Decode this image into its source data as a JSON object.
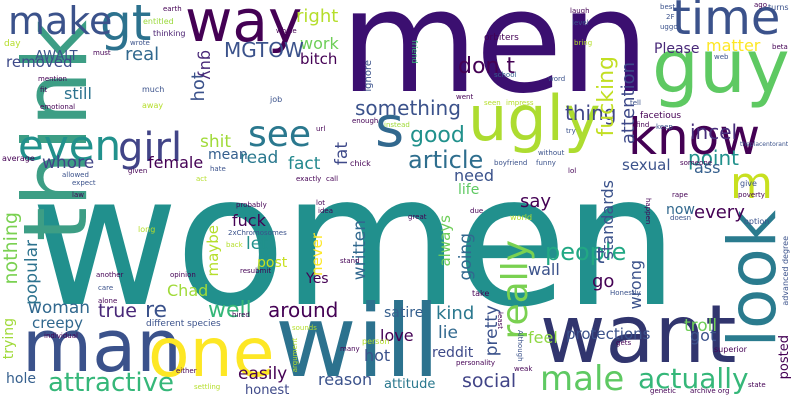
{
  "words": [
    {
      "text": "women",
      "color": "#21908d"
    },
    {
      "text": "men",
      "color": "#3b0f70"
    },
    {
      "text": "think",
      "color": "#3d9e85"
    },
    {
      "text": "guy",
      "color": "#5ec962"
    },
    {
      "text": "will",
      "color": "#2c728e"
    },
    {
      "text": "want",
      "color": "#31356e"
    },
    {
      "text": "man",
      "color": "#3b528b"
    },
    {
      "text": "one",
      "color": "#fde725"
    },
    {
      "text": "look",
      "color": "#2a7b8e"
    },
    {
      "text": "way",
      "color": "#440154"
    },
    {
      "text": "time",
      "color": "#3b528b"
    },
    {
      "text": "ugly",
      "color": "#addc30"
    },
    {
      "text": "know",
      "color": "#440154"
    },
    {
      "text": "gt",
      "color": "#2c728e"
    },
    {
      "text": "make",
      "color": "#3b528b"
    },
    {
      "text": "s",
      "color": "#31688e"
    },
    {
      "text": "m",
      "color": "#c8e020"
    },
    {
      "text": "even",
      "color": "#21918c"
    },
    {
      "text": "girl",
      "color": "#414487"
    },
    {
      "text": "see",
      "color": "#2a788e"
    },
    {
      "text": "male",
      "color": "#5ec962"
    },
    {
      "text": "actually",
      "color": "#35b779"
    },
    {
      "text": "attractive",
      "color": "#35b779"
    },
    {
      "text": "really",
      "color": "#7ad151"
    },
    {
      "text": "people",
      "color": "#22a884"
    },
    {
      "text": "article",
      "color": "#2e6e8e"
    },
    {
      "text": "good",
      "color": "#21918c"
    },
    {
      "text": "something",
      "color": "#3b528b"
    },
    {
      "text": "don t",
      "color": "#440154"
    },
    {
      "text": "thing",
      "color": "#404688"
    },
    {
      "text": "point",
      "color": "#21918c"
    },
    {
      "text": "incel",
      "color": "#472d7b"
    },
    {
      "text": "fucking",
      "color": "#c2df23"
    },
    {
      "text": "attention",
      "color": "#3e4989"
    },
    {
      "text": "matter",
      "color": "#fde725"
    },
    {
      "text": "Please",
      "color": "#482878"
    },
    {
      "text": "work",
      "color": "#6ece58"
    },
    {
      "text": "right",
      "color": "#b5de2b"
    },
    {
      "text": "bitch",
      "color": "#440154"
    },
    {
      "text": "MGTOW",
      "color": "#3b528b"
    },
    {
      "text": "real",
      "color": "#31688e"
    },
    {
      "text": "hot",
      "color": "#3b528b"
    },
    {
      "text": "guy",
      "color": "#482878"
    },
    {
      "text": "still",
      "color": "#2c728e"
    },
    {
      "text": "removed",
      "color": "#3e4a89"
    },
    {
      "text": "AWALT",
      "color": "#3b528b"
    },
    {
      "text": "whore",
      "color": "#414487"
    },
    {
      "text": "female",
      "color": "#440154"
    },
    {
      "text": "shit",
      "color": "#a0da39"
    },
    {
      "text": "mean",
      "color": "#355f8d"
    },
    {
      "text": "read",
      "color": "#2a788e"
    },
    {
      "text": "fact",
      "color": "#23898e"
    },
    {
      "text": "fat",
      "color": "#3e4989"
    },
    {
      "text": "need",
      "color": "#3b528b"
    },
    {
      "text": "life",
      "color": "#5ec962"
    },
    {
      "text": "say",
      "color": "#440154"
    },
    {
      "text": "standards",
      "color": "#3b528b"
    },
    {
      "text": "sexual",
      "color": "#3b528b"
    },
    {
      "text": "ass",
      "color": "#355f8d"
    },
    {
      "text": "every",
      "color": "#440154"
    },
    {
      "text": "now",
      "color": "#31688e"
    },
    {
      "text": "t",
      "color": "#3b528b"
    },
    {
      "text": "nothing",
      "color": "#7ad151"
    },
    {
      "text": "popular",
      "color": "#2c728e"
    },
    {
      "text": "fuck",
      "color": "#440154"
    },
    {
      "text": "let",
      "color": "#21918c"
    },
    {
      "text": "maybe",
      "color": "#b5de2b"
    },
    {
      "text": "post",
      "color": "#c8e020"
    },
    {
      "text": "never",
      "color": "#fde725"
    },
    {
      "text": "written",
      "color": "#31688e"
    },
    {
      "text": "always",
      "color": "#6ece58"
    },
    {
      "text": "going",
      "color": "#31688e"
    },
    {
      "text": "wall",
      "color": "#3b528b"
    },
    {
      "text": "go",
      "color": "#440154"
    },
    {
      "text": "wrong",
      "color": "#3b528b"
    },
    {
      "text": "Chad",
      "color": "#a0da39"
    },
    {
      "text": "re",
      "color": "#3b528b"
    },
    {
      "text": "well",
      "color": "#35b779"
    },
    {
      "text": "woman",
      "color": "#31688e"
    },
    {
      "text": "true",
      "color": "#482878"
    },
    {
      "text": "creepy",
      "color": "#31688e"
    },
    {
      "text": "Yes",
      "color": "#440154"
    },
    {
      "text": "around",
      "color": "#440154"
    },
    {
      "text": "kind",
      "color": "#2a788e"
    },
    {
      "text": "lie",
      "color": "#31688e"
    },
    {
      "text": "love",
      "color": "#440154"
    },
    {
      "text": "satire",
      "color": "#355f8d"
    },
    {
      "text": "feel",
      "color": "#8fd744"
    },
    {
      "text": "protections",
      "color": "#3b528b"
    },
    {
      "text": "pretty",
      "color": "#3b528b"
    },
    {
      "text": "troll",
      "color": "#6ece58"
    },
    {
      "text": "got",
      "color": "#3b528b"
    },
    {
      "text": "trying",
      "color": "#a0da39"
    },
    {
      "text": "hole",
      "color": "#355f8d"
    },
    {
      "text": "easily",
      "color": "#440154"
    },
    {
      "text": "hot",
      "color": "#3b528b"
    },
    {
      "text": "reddit",
      "color": "#3e4a89"
    },
    {
      "text": "reason",
      "color": "#3b528b"
    },
    {
      "text": "attitude",
      "color": "#2a788e"
    },
    {
      "text": "social",
      "color": "#414487"
    },
    {
      "text": "honest",
      "color": "#3e4989"
    },
    {
      "text": "posted",
      "color": "#440154"
    },
    {
      "text": "earth",
      "color": "#440154"
    },
    {
      "text": "entitled",
      "color": "#9bd93c"
    },
    {
      "text": "thinking",
      "color": "#481f70"
    },
    {
      "text": "whole",
      "color": "#440154"
    },
    {
      "text": "wrote",
      "color": "#3b528b"
    },
    {
      "text": "must",
      "color": "#440154"
    },
    {
      "text": "day",
      "color": "#b5de2b"
    },
    {
      "text": "mention",
      "color": "#440154"
    },
    {
      "text": "fit",
      "color": "#440154"
    },
    {
      "text": "emotional",
      "color": "#440154"
    },
    {
      "text": "much",
      "color": "#3b528b"
    },
    {
      "text": "away",
      "color": "#b5de2b"
    },
    {
      "text": "job",
      "color": "#3b528b"
    },
    {
      "text": "ignore",
      "color": "#3b528b"
    },
    {
      "text": "url",
      "color": "#440154"
    },
    {
      "text": "enough",
      "color": "#440154"
    },
    {
      "text": "instead",
      "color": "#a0da39"
    },
    {
      "text": "chick",
      "color": "#440154"
    },
    {
      "text": "friend",
      "color": "#35b779"
    },
    {
      "text": "orbiters",
      "color": "#440154"
    },
    {
      "text": "went",
      "color": "#440154"
    },
    {
      "text": "school",
      "color": "#355f8d"
    },
    {
      "text": "seen",
      "color": "#b5de2b"
    },
    {
      "text": "impress",
      "color": "#b5de2b"
    },
    {
      "text": "without",
      "color": "#3b528b"
    },
    {
      "text": "boyfriend",
      "color": "#3b528b"
    },
    {
      "text": "funny",
      "color": "#3b528b"
    },
    {
      "text": "lol",
      "color": "#440154"
    },
    {
      "text": "try",
      "color": "#3b528b"
    },
    {
      "text": "laugh",
      "color": "#440154"
    },
    {
      "text": "level",
      "color": "#3b528b"
    },
    {
      "text": "bring",
      "color": "#b5de2b"
    },
    {
      "text": "word",
      "color": "#3b528b"
    },
    {
      "text": "facetious",
      "color": "#440154"
    },
    {
      "text": "tell",
      "color": "#3b528b"
    },
    {
      "text": "find",
      "color": "#440154"
    },
    {
      "text": "keep",
      "color": "#3b528b"
    },
    {
      "text": "best",
      "color": "#3b528b"
    },
    {
      "text": "2F",
      "color": "#3b528b"
    },
    {
      "text": "uggo",
      "color": "#3b528b"
    },
    {
      "text": "web",
      "color": "#3b528b"
    },
    {
      "text": "ago",
      "color": "#440154"
    },
    {
      "text": "turns",
      "color": "#3b528b"
    },
    {
      "text": "beta",
      "color": "#440154"
    },
    {
      "text": "theplacentorant",
      "color": "#3b528b"
    },
    {
      "text": "someone",
      "color": "#440154"
    },
    {
      "text": "give",
      "color": "#3b528b"
    },
    {
      "text": "poverty",
      "color": "#440154"
    },
    {
      "text": "rape",
      "color": "#440154"
    },
    {
      "text": "happen",
      "color": "#440154"
    },
    {
      "text": "doesn",
      "color": "#3b528b"
    },
    {
      "text": "option",
      "color": "#3b528b"
    },
    {
      "text": "advanced degree",
      "color": "#3b528b"
    },
    {
      "text": "average",
      "color": "#440154"
    },
    {
      "text": "given",
      "color": "#440154"
    },
    {
      "text": "hate",
      "color": "#3b528b"
    },
    {
      "text": "act",
      "color": "#b5de2b"
    },
    {
      "text": "exactly",
      "color": "#440154"
    },
    {
      "text": "allowed",
      "color": "#3b528b"
    },
    {
      "text": "expect",
      "color": "#3b528b"
    },
    {
      "text": "law",
      "color": "#440154"
    },
    {
      "text": "long",
      "color": "#b5de2b"
    },
    {
      "text": "probably",
      "color": "#440154"
    },
    {
      "text": "2xChromosomes",
      "color": "#3b528b"
    },
    {
      "text": "back",
      "color": "#b5de2b"
    },
    {
      "text": "resubmit",
      "color": "#440154"
    },
    {
      "text": "lot",
      "color": "#440154"
    },
    {
      "text": "idea",
      "color": "#440154"
    },
    {
      "text": "stand",
      "color": "#440154"
    },
    {
      "text": "great",
      "color": "#440154"
    },
    {
      "text": "due",
      "color": "#440154"
    },
    {
      "text": "world",
      "color": "#b5de2b"
    },
    {
      "text": "Honestly",
      "color": "#3b528b"
    },
    {
      "text": "another",
      "color": "#440154"
    },
    {
      "text": "care",
      "color": "#3b528b"
    },
    {
      "text": "alone",
      "color": "#440154"
    },
    {
      "text": "opinion",
      "color": "#440154"
    },
    {
      "text": "individual",
      "color": "#440154"
    },
    {
      "text": "different species",
      "color": "#3b528b"
    },
    {
      "text": "hired",
      "color": "#440154"
    },
    {
      "text": "sounds",
      "color": "#b5de2b"
    },
    {
      "text": "argument",
      "color": "#b5de2b"
    },
    {
      "text": "either",
      "color": "#440154"
    },
    {
      "text": "settling",
      "color": "#b5de2b"
    },
    {
      "text": "take",
      "color": "#440154"
    },
    {
      "text": "least",
      "color": "#440154"
    },
    {
      "text": "personality",
      "color": "#440154"
    },
    {
      "text": "person",
      "color": "#b5de2b"
    },
    {
      "text": "many",
      "color": "#440154"
    },
    {
      "text": "Although",
      "color": "#3b528b"
    },
    {
      "text": "weak",
      "color": "#440154"
    },
    {
      "text": "gets",
      "color": "#440154"
    },
    {
      "text": "superior",
      "color": "#440154"
    },
    {
      "text": "state",
      "color": "#440154"
    },
    {
      "text": "genetic",
      "color": "#440154"
    },
    {
      "text": "archive org",
      "color": "#440154"
    },
    {
      "text": "call",
      "color": "#440154"
    }
  ]
}
